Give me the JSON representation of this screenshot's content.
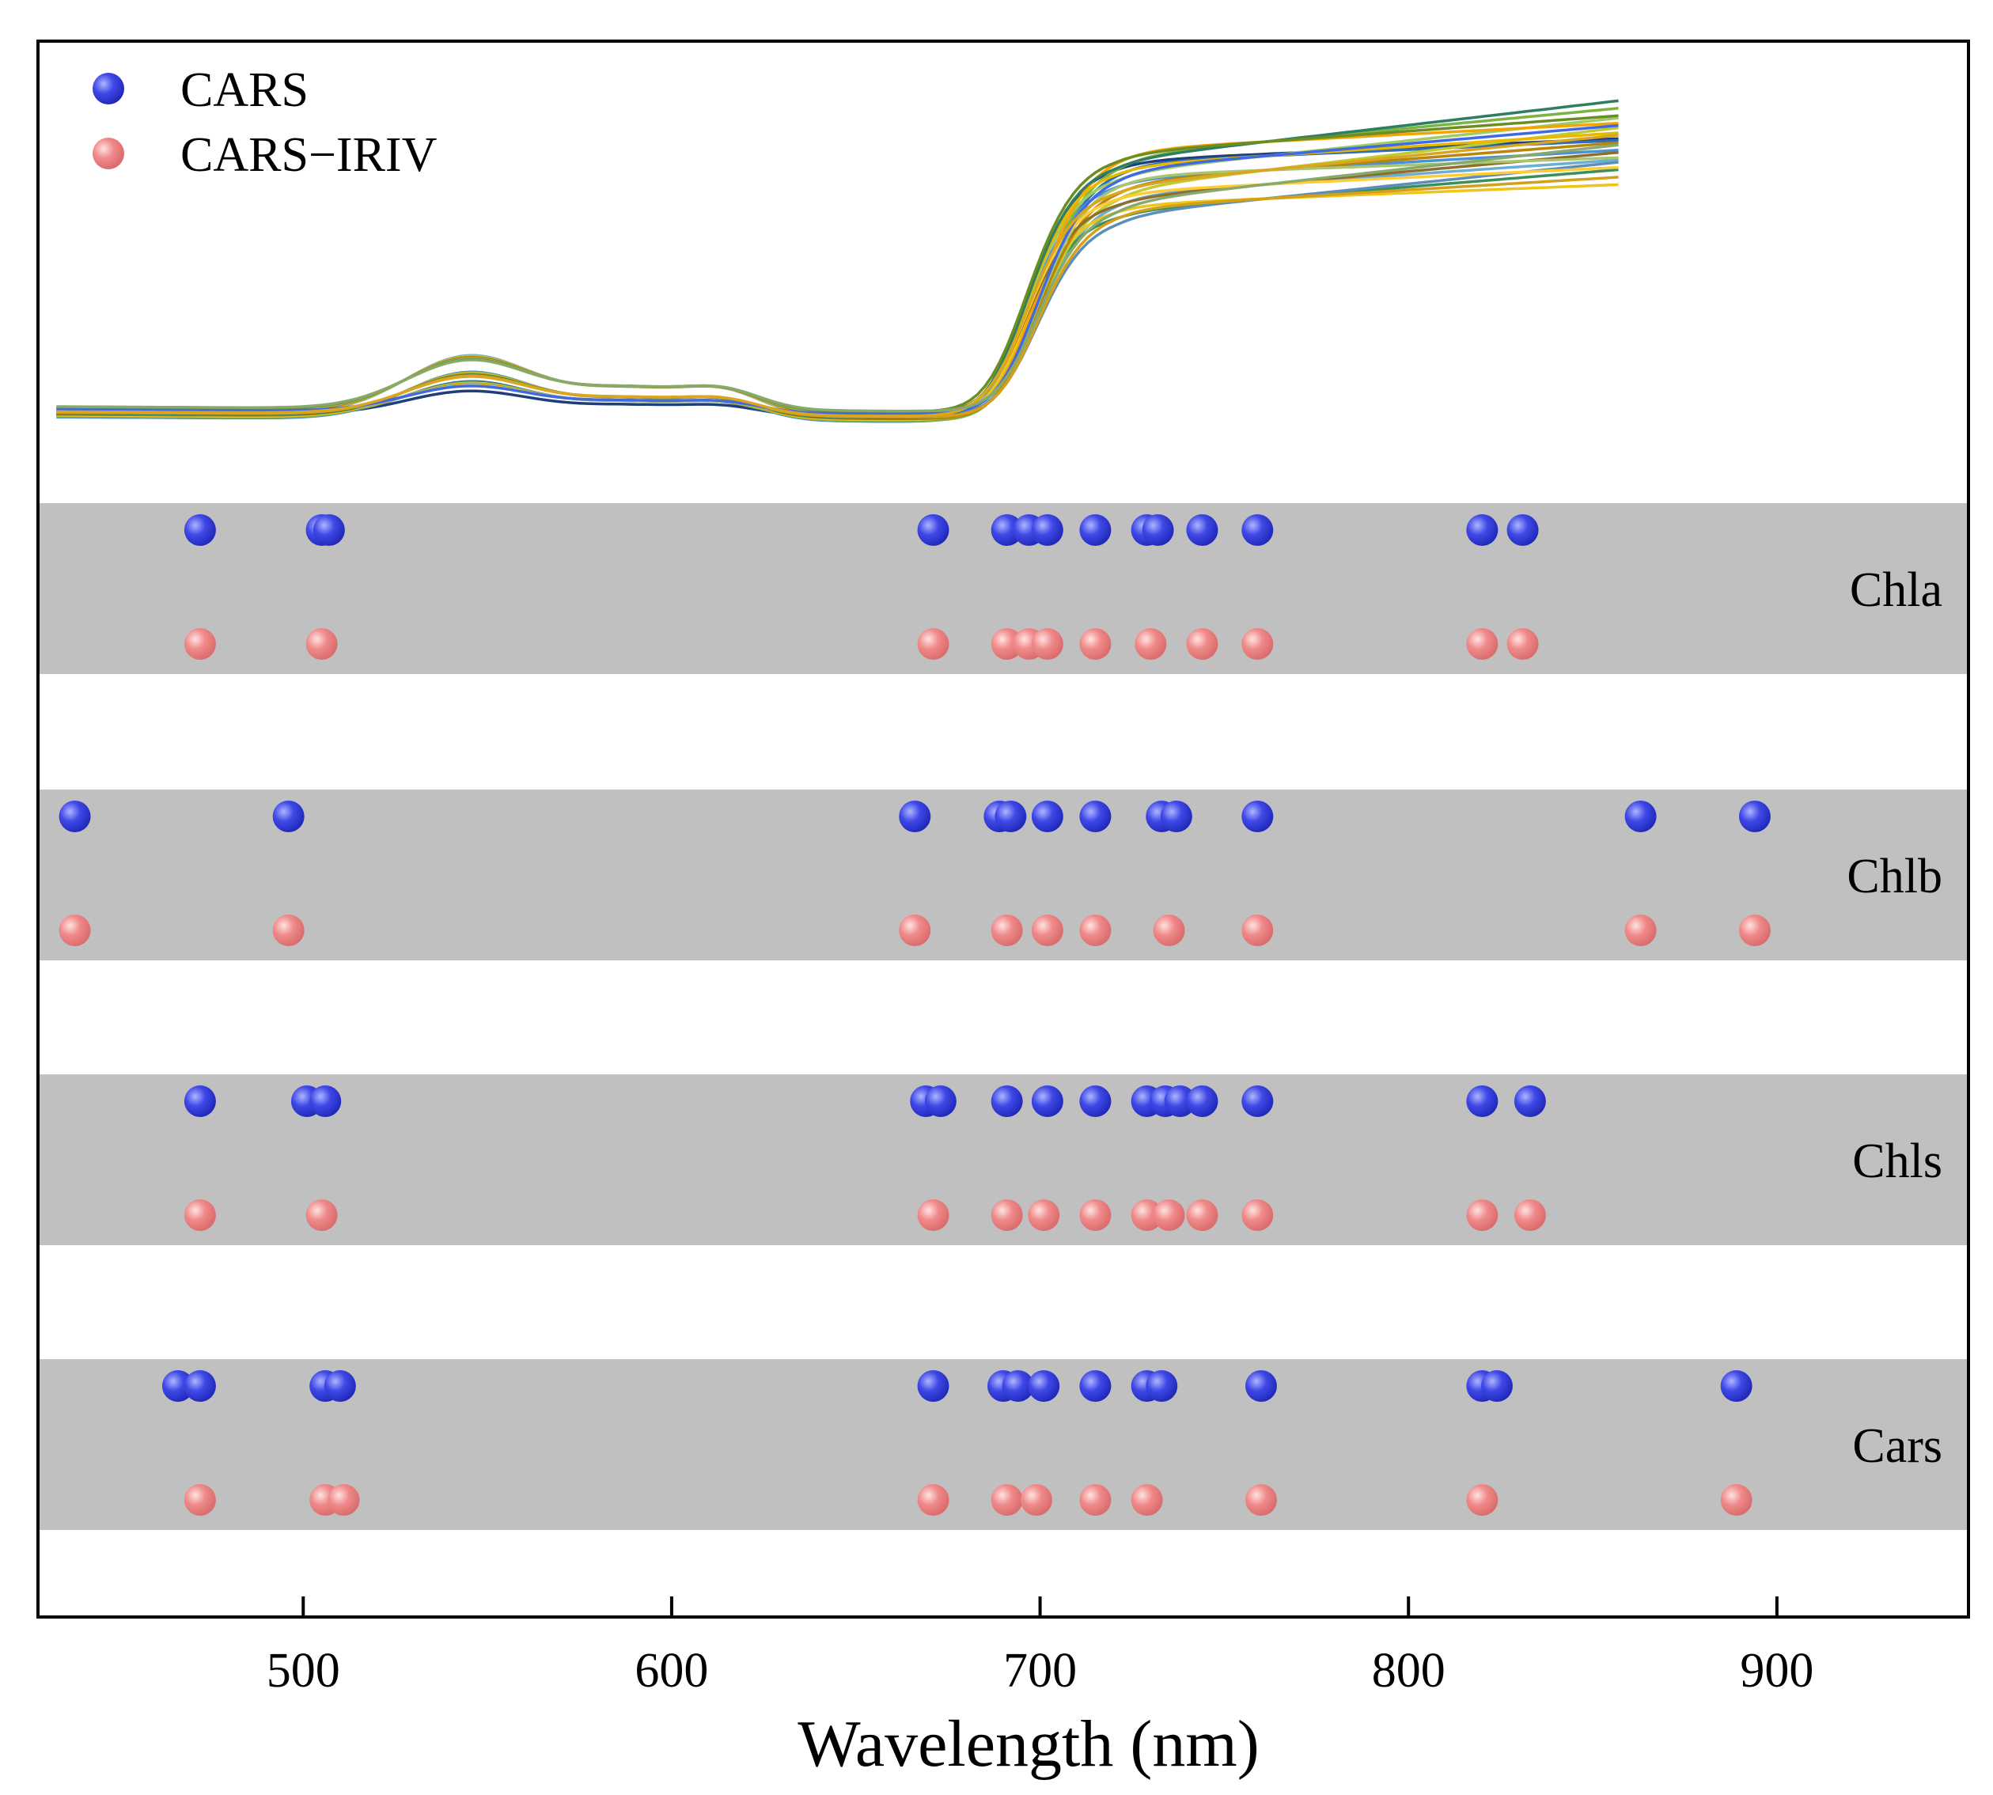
{
  "chart_data": {
    "type": "scatter",
    "title": "",
    "xlabel": "Wavelength (nm)",
    "ylabel": "",
    "xlim": [
      428,
      952
    ],
    "xticks": [
      500,
      600,
      700,
      800,
      900
    ],
    "grid": false,
    "legend": {
      "position": "top-left",
      "entries": [
        {
          "name": "CARS",
          "color": "#3f48e6"
        },
        {
          "name": "CARS−IRIV",
          "color": "#f08a8a"
        }
      ]
    },
    "spectra": {
      "description_x_range": [
        433,
        858
      ],
      "n_curves": 22,
      "colors": [
        "#1f3f7a",
        "#2e6db8",
        "#4a90d9",
        "#6aaed6",
        "#3c8f5a",
        "#7cb342",
        "#9ccc65",
        "#c0ca33",
        "#f0c419",
        "#f4a300",
        "#e6b800",
        "#b8860b",
        "#8d6e2a",
        "#5b8fb9",
        "#2f7d63",
        "#a8c66c",
        "#ffcc33",
        "#d4a017",
        "#6b8e23",
        "#4169e1",
        "#daa520",
        "#87a96b"
      ]
    },
    "bands": [
      {
        "name": "Chla",
        "cars": [
          472,
          505,
          507,
          671,
          691,
          697,
          702,
          715,
          729,
          732,
          744,
          759,
          820,
          831
        ],
        "cars_iriv": [
          472,
          505,
          671,
          691,
          697,
          702,
          715,
          730,
          744,
          759,
          820,
          831
        ]
      },
      {
        "name": "Chlb",
        "cars": [
          438,
          496,
          666,
          689,
          692,
          702,
          715,
          733,
          737,
          759,
          863,
          894
        ],
        "cars_iriv": [
          438,
          496,
          666,
          691,
          702,
          715,
          735,
          759,
          863,
          894
        ]
      },
      {
        "name": "Chls",
        "cars": [
          472,
          501,
          506,
          669,
          673,
          691,
          702,
          715,
          729,
          734,
          738,
          744,
          759,
          820,
          833
        ],
        "cars_iriv": [
          472,
          505,
          671,
          691,
          701,
          715,
          729,
          735,
          744,
          759,
          820,
          833
        ]
      },
      {
        "name": "Cars",
        "cars": [
          466,
          472,
          506,
          510,
          671,
          690,
          694,
          701,
          715,
          729,
          733,
          760,
          820,
          824,
          889
        ],
        "cars_iriv": [
          472,
          506,
          511,
          671,
          691,
          699,
          715,
          729,
          760,
          820,
          889
        ]
      }
    ]
  }
}
